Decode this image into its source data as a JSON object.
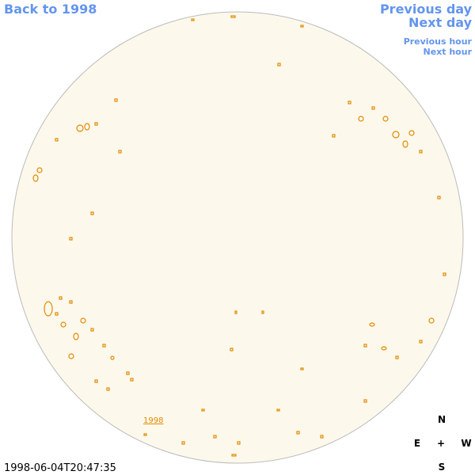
{
  "nav": {
    "back": "Back to 1998",
    "previous_day": "Previous day",
    "next_day": "Next day",
    "previous_hour": "Previous hour",
    "next_hour": "Next hour"
  },
  "image": {
    "year_label": "1998",
    "timestamp": "1998-06-04T20:47:35"
  },
  "compass": {
    "north": "N",
    "east": "E",
    "center": "+",
    "west": "W",
    "south": "S"
  }
}
